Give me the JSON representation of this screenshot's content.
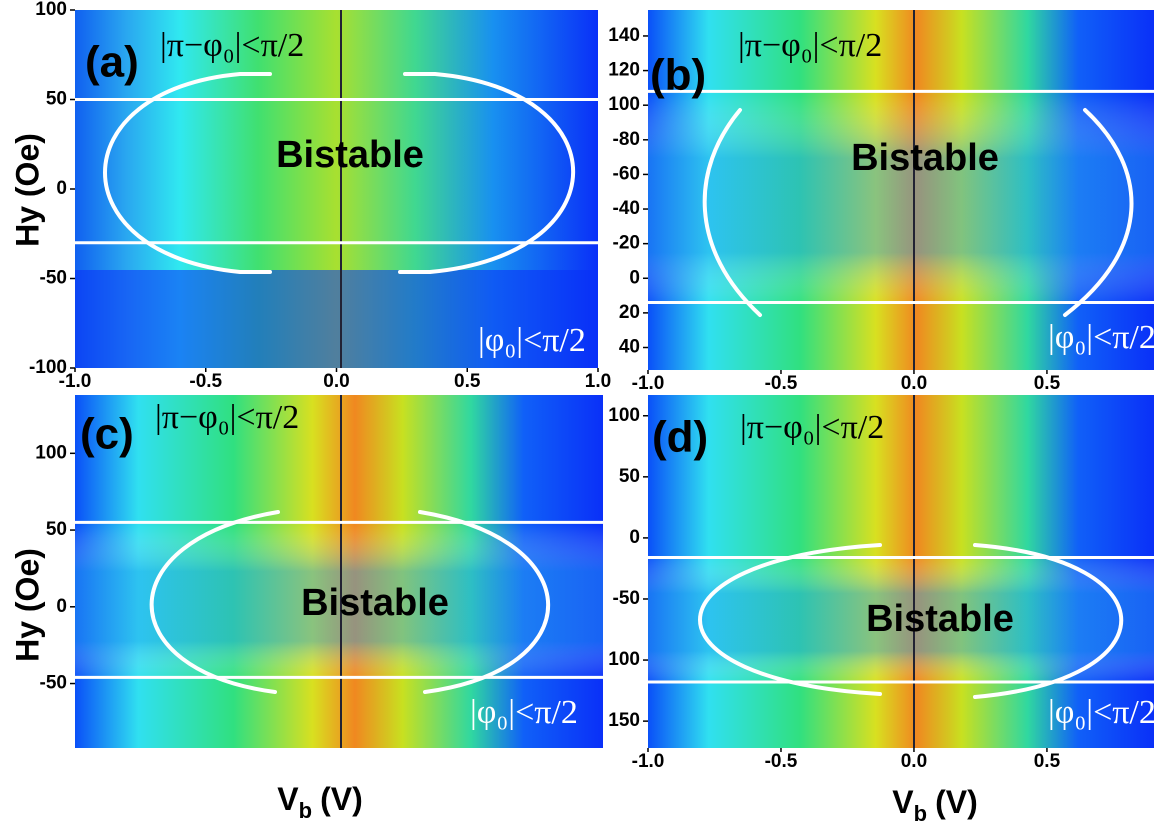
{
  "chart_data": [
    {
      "type": "heatmap",
      "panel_label": "(a)",
      "upper_region": "|π−φ₀|<π/2",
      "lower_region": "|φ₀|<π/2",
      "region_label": "Bistable",
      "ylabel": "Hy (Oe)",
      "xlim": [
        -1.0,
        1.0
      ],
      "xticks": [
        {
          "value": -1.0,
          "label": "-1.0"
        },
        -0.5,
        {
          "value": 0.0,
          "label": "0.0"
        },
        0.5,
        {
          "value": 1.0,
          "label": "1.0"
        }
      ],
      "ylim": [
        -100,
        100
      ],
      "yticks": [
        -100,
        -50,
        0,
        50,
        100
      ],
      "boundaries": [
        50,
        -30
      ]
    },
    {
      "type": "heatmap",
      "panel_label": "(b)",
      "upper_region": "|π−φ₀|<π/2",
      "lower_region": "|φ₀|<π/2",
      "region_label": "Bistable",
      "xlim": [
        -1.0,
        0.88
      ],
      "xticks": [
        {
          "value": -1.0,
          "label": "-1.0"
        },
        -0.5,
        {
          "value": 0.0,
          "label": "0.0"
        },
        0.5
      ],
      "ylim": [
        -155,
        53
      ],
      "y_inverted": true,
      "yticks": [
        {
          "value": -140,
          "label": "140"
        },
        {
          "value": -120,
          "label": "120"
        },
        {
          "value": -100,
          "label": "100"
        },
        -80,
        -60,
        -40,
        -20,
        0,
        20,
        40
      ],
      "boundaries": [
        -108,
        14
      ]
    },
    {
      "type": "heatmap",
      "panel_label": "(c)",
      "upper_region": "|π−φ₀|<π/2",
      "lower_region": "|φ₀|<π/2",
      "region_label": "Bistable",
      "ylabel": "Hy (Oe)",
      "xlabel": [
        "V",
        "b",
        "(V)"
      ],
      "ylim": [
        -92,
        138
      ],
      "yticks": [
        -50,
        0,
        50,
        100
      ],
      "boundaries": [
        55,
        -46
      ]
    },
    {
      "type": "heatmap",
      "panel_label": "(d)",
      "upper_region": "|π−φ₀|<π/2",
      "lower_region": "|φ₀|<π/2",
      "region_label": "Bistable",
      "xlabel": [
        "V",
        "b",
        "(V)"
      ],
      "xlim": [
        -1.0,
        0.88
      ],
      "xticks": [
        {
          "value": -1.0,
          "label": "-1.0"
        },
        -0.5,
        {
          "value": 0.0,
          "label": "0.0"
        },
        0.5
      ],
      "ylim": [
        -172,
        117
      ],
      "yticks": [
        {
          "value": -150,
          "label": "150"
        },
        {
          "value": -100,
          "label": "100"
        },
        -50,
        0,
        50,
        100
      ],
      "boundaries": [
        -16,
        -118
      ]
    }
  ]
}
